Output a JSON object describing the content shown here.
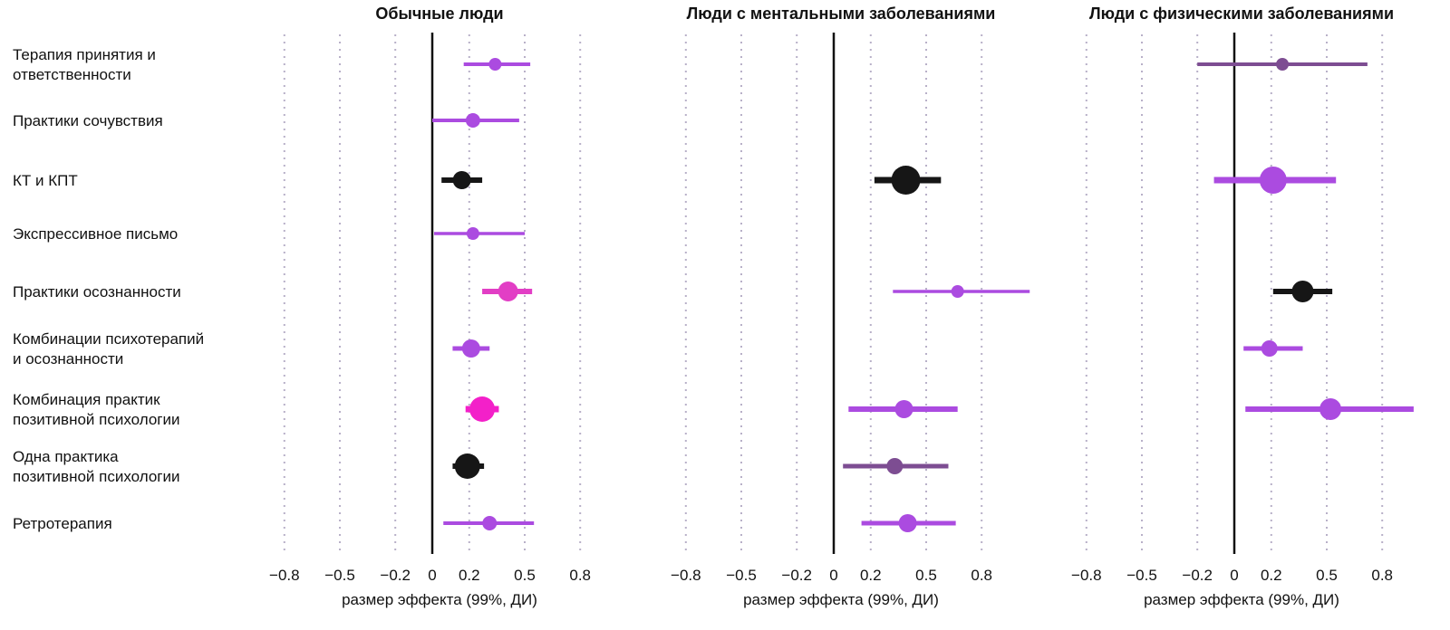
{
  "chart_data": {
    "type": "forest",
    "title": "",
    "xlabel": "размер эффекта (99%, ДИ)",
    "x_ticks": [
      -0.8,
      -0.5,
      -0.2,
      0,
      0.2,
      0.5,
      0.8
    ],
    "x_tick_labels": [
      "−0.8",
      "−0.5",
      "−0.2",
      "0",
      "0.2",
      "0.5",
      "0.8"
    ],
    "xlim": [
      -0.95,
      1.1
    ],
    "grid": "dotted-vertical",
    "legend": "none",
    "categories": [
      "Терапия принятия и\nответственности",
      "Практики сочувствия",
      "КТ и КПТ",
      "Экспрессивное письмо",
      "Практики осознанности",
      "Комбинации психотерапий\nи осознанности",
      "Комбинация практик\nпозитивной психологии",
      "Одна практика\nпозитивной психологии",
      "Ретротерапия"
    ],
    "colors": {
      "purple": "#ab4be0",
      "magenta": "#e23ec5",
      "pink": "#f320c9",
      "dark_purple": "#7d4d92",
      "black": "#161616",
      "grid": "#b8b0c8",
      "axis": "#111111"
    },
    "panels": [
      {
        "title": "Обычные люди",
        "points": [
          {
            "row": 0,
            "est": 0.34,
            "lo": 0.17,
            "hi": 0.53,
            "color": "purple",
            "r": 7,
            "lw": 4
          },
          {
            "row": 1,
            "est": 0.22,
            "lo": 0.0,
            "hi": 0.47,
            "color": "purple",
            "r": 8,
            "lw": 4
          },
          {
            "row": 2,
            "est": 0.16,
            "lo": 0.05,
            "hi": 0.27,
            "color": "black",
            "r": 10,
            "lw": 6
          },
          {
            "row": 3,
            "est": 0.22,
            "lo": 0.01,
            "hi": 0.5,
            "color": "purple",
            "r": 7,
            "lw": 3.5
          },
          {
            "row": 4,
            "est": 0.41,
            "lo": 0.27,
            "hi": 0.54,
            "color": "magenta",
            "r": 11,
            "lw": 6
          },
          {
            "row": 5,
            "est": 0.21,
            "lo": 0.11,
            "hi": 0.31,
            "color": "purple",
            "r": 10,
            "lw": 5
          },
          {
            "row": 6,
            "est": 0.27,
            "lo": 0.18,
            "hi": 0.36,
            "color": "pink",
            "r": 14,
            "lw": 7
          },
          {
            "row": 7,
            "est": 0.19,
            "lo": 0.11,
            "hi": 0.28,
            "color": "black",
            "r": 14,
            "lw": 6
          },
          {
            "row": 8,
            "est": 0.31,
            "lo": 0.06,
            "hi": 0.55,
            "color": "purple",
            "r": 8,
            "lw": 4
          }
        ]
      },
      {
        "title": "Люди с ментальными заболеваниями",
        "points": [
          {
            "row": 2,
            "est": 0.39,
            "lo": 0.22,
            "hi": 0.58,
            "color": "black",
            "r": 16,
            "lw": 7
          },
          {
            "row": 4,
            "est": 0.67,
            "lo": 0.32,
            "hi": 1.06,
            "color": "purple",
            "r": 7,
            "lw": 3.5
          },
          {
            "row": 6,
            "est": 0.38,
            "lo": 0.08,
            "hi": 0.67,
            "color": "purple",
            "r": 10,
            "lw": 6
          },
          {
            "row": 7,
            "est": 0.33,
            "lo": 0.05,
            "hi": 0.62,
            "color": "dark_purple",
            "r": 9,
            "lw": 5
          },
          {
            "row": 8,
            "est": 0.4,
            "lo": 0.15,
            "hi": 0.66,
            "color": "purple",
            "r": 10,
            "lw": 5
          }
        ]
      },
      {
        "title": "Люди с физическими заболеваниями",
        "points": [
          {
            "row": 0,
            "est": 0.26,
            "lo": -0.2,
            "hi": 0.72,
            "color": "dark_purple",
            "r": 7,
            "lw": 4
          },
          {
            "row": 2,
            "est": 0.21,
            "lo": -0.11,
            "hi": 0.55,
            "color": "purple",
            "r": 15,
            "lw": 7
          },
          {
            "row": 4,
            "est": 0.37,
            "lo": 0.21,
            "hi": 0.53,
            "color": "black",
            "r": 12,
            "lw": 6
          },
          {
            "row": 5,
            "est": 0.19,
            "lo": 0.05,
            "hi": 0.37,
            "color": "purple",
            "r": 9,
            "lw": 5
          },
          {
            "row": 6,
            "est": 0.52,
            "lo": 0.06,
            "hi": 0.97,
            "color": "purple",
            "r": 12,
            "lw": 6
          }
        ]
      }
    ]
  }
}
